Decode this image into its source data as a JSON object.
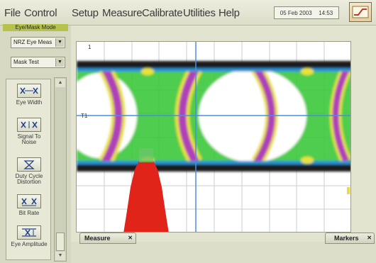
{
  "menu": {
    "items": [
      "File",
      "Control",
      "Setup",
      "Measure",
      "Calibrate",
      "Utilities",
      "Help"
    ]
  },
  "status": {
    "date": "05 Feb 2003",
    "time": "14:53"
  },
  "sidebar": {
    "mode_label": "Eye/Mask Mode",
    "signal_select": "NRZ Eye Meas",
    "test_select": "Mask Test",
    "tools": [
      {
        "label": "Eye Width"
      },
      {
        "label": "Signal To Noise"
      },
      {
        "label": "Duty Cycle Distortion"
      },
      {
        "label": "Bit Rate"
      },
      {
        "label": "Eye Amplitude"
      }
    ]
  },
  "plot": {
    "marker_label": "T1",
    "channel_label": "1"
  },
  "tabs": {
    "measure": "Measure",
    "markers": "Markers"
  },
  "colors": {
    "accent_mode": "#b7c24c",
    "eye_magenta": "#b03fb8",
    "eye_green": "#3cc83c",
    "eye_yellow": "#e8e23a",
    "eye_blue": "#2a8fd0",
    "histogram_red": "#e0241a",
    "marker_line": "#4a8fd8"
  }
}
